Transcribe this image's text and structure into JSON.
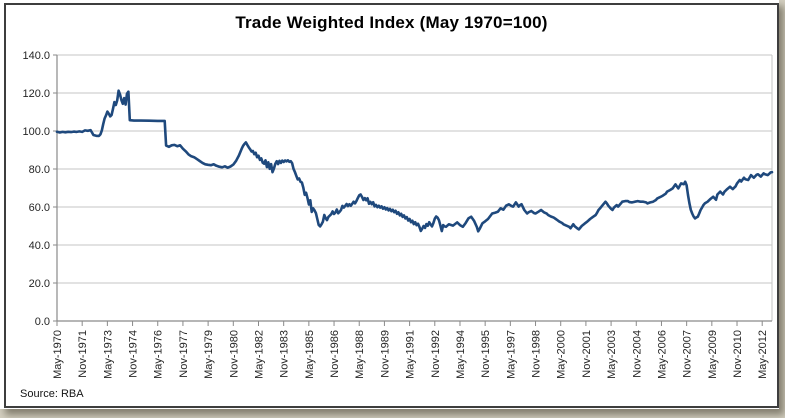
{
  "source_note": "Source: RBA",
  "colors": {
    "page_background": "#D3CFC0",
    "chart_background": "#FFFFFF",
    "frame_border": "#3E3E3E",
    "grid": "#C6C6C6",
    "axis": "#8A8A8A",
    "tick_label_text": "#262626",
    "title_text": "#000000",
    "line": "#1F497D"
  },
  "chart_data": {
    "type": "line",
    "title": "Trade Weighted Index (May 1970=100)",
    "series_name": "Trade Weighted Index",
    "xlabel": "",
    "ylabel": "",
    "x_unit": "months since May 1970",
    "xlim_months": [
      0,
      511
    ],
    "ylim": [
      0,
      140
    ],
    "grid": "horizontal",
    "legend": "none",
    "line_color": "#1F497D",
    "y_tick_values": [
      0,
      20,
      40,
      60,
      80,
      100,
      120,
      140
    ],
    "y_tick_labels": [
      "0.0",
      "20.0",
      "40.0",
      "60.0",
      "80.0",
      "100.0",
      "120.0",
      "140.0"
    ],
    "x_tick_month_indices": [
      0,
      18,
      36,
      54,
      72,
      90,
      108,
      126,
      144,
      162,
      180,
      198,
      216,
      234,
      252,
      270,
      288,
      306,
      324,
      342,
      360,
      378,
      396,
      414,
      432,
      450,
      468,
      486,
      504
    ],
    "x_tick_labels": [
      "May-1970",
      "Nov-1971",
      "May-1973",
      "Nov-1974",
      "May-1976",
      "Nov-1977",
      "May-1979",
      "Nov-1980",
      "May-1982",
      "Nov-1983",
      "May-1985",
      "Nov-1986",
      "May-1988",
      "Nov-1989",
      "May-1991",
      "Nov-1992",
      "May-1994",
      "Nov-1995",
      "May-1997",
      "Nov-1998",
      "May-2000",
      "Nov-2001",
      "May-2003",
      "Nov-2004",
      "May-2006",
      "Nov-2007",
      "May-2009",
      "Nov-2010",
      "May-2012"
    ],
    "points": [
      [
        0,
        99.6
      ],
      [
        2,
        99.2
      ],
      [
        4,
        99.5
      ],
      [
        6,
        99.3
      ],
      [
        8,
        99.6
      ],
      [
        10,
        99.4
      ],
      [
        12,
        99.7
      ],
      [
        14,
        99.5
      ],
      [
        16,
        99.8
      ],
      [
        18,
        99.5
      ],
      [
        20,
        100.3
      ],
      [
        22,
        100.1
      ],
      [
        24,
        100.4
      ],
      [
        25,
        99.2
      ],
      [
        26,
        97.9
      ],
      [
        28,
        97.5
      ],
      [
        30,
        97.4
      ],
      [
        31,
        98.2
      ],
      [
        32,
        100.2
      ],
      [
        33,
        103.6
      ],
      [
        34,
        106.6
      ],
      [
        35,
        108.2
      ],
      [
        36,
        110.2
      ],
      [
        37,
        109.1
      ],
      [
        38,
        107.7
      ],
      [
        39,
        108.4
      ],
      [
        40,
        111.7
      ],
      [
        41,
        115.2
      ],
      [
        42,
        113.7
      ],
      [
        43,
        116.1
      ],
      [
        44,
        121.2
      ],
      [
        45,
        119.3
      ],
      [
        46,
        116.3
      ],
      [
        47,
        114.3
      ],
      [
        48,
        117.3
      ],
      [
        49,
        113.9
      ],
      [
        50,
        119.7
      ],
      [
        51,
        120.7
      ],
      [
        52,
        105.7
      ],
      [
        55,
        105.5
      ],
      [
        60,
        105.5
      ],
      [
        66,
        105.4
      ],
      [
        72,
        105.3
      ],
      [
        77,
        105.3
      ],
      [
        78,
        92.3
      ],
      [
        80,
        91.7
      ],
      [
        82,
        92.5
      ],
      [
        84,
        92.7
      ],
      [
        86,
        92.0
      ],
      [
        88,
        92.5
      ],
      [
        90,
        90.7
      ],
      [
        92,
        89.3
      ],
      [
        94,
        87.7
      ],
      [
        96,
        86.7
      ],
      [
        98,
        86.2
      ],
      [
        100,
        85.2
      ],
      [
        102,
        84.2
      ],
      [
        104,
        83.2
      ],
      [
        106,
        82.5
      ],
      [
        108,
        82.2
      ],
      [
        110,
        82.0
      ],
      [
        112,
        82.5
      ],
      [
        114,
        81.7
      ],
      [
        116,
        81.2
      ],
      [
        118,
        80.9
      ],
      [
        120,
        81.4
      ],
      [
        122,
        80.7
      ],
      [
        124,
        81.3
      ],
      [
        126,
        82.3
      ],
      [
        128,
        84.3
      ],
      [
        130,
        87.1
      ],
      [
        132,
        90.7
      ],
      [
        133,
        92.2
      ],
      [
        134,
        93.2
      ],
      [
        135,
        94.0
      ],
      [
        136,
        92.7
      ],
      [
        137,
        91.5
      ],
      [
        138,
        90.4
      ],
      [
        139,
        89.2
      ],
      [
        140,
        89.5
      ],
      [
        141,
        87.8
      ],
      [
        142,
        88.5
      ],
      [
        143,
        86.2
      ],
      [
        144,
        87.0
      ],
      [
        145,
        84.8
      ],
      [
        146,
        85.6
      ],
      [
        147,
        83.3
      ],
      [
        148,
        82.8
      ],
      [
        149,
        84.6
      ],
      [
        150,
        81.0
      ],
      [
        151,
        83.5
      ],
      [
        152,
        80.1
      ],
      [
        153,
        82.6
      ],
      [
        154,
        78.3
      ],
      [
        155,
        80.2
      ],
      [
        156,
        82.7
      ],
      [
        157,
        84.1
      ],
      [
        158,
        82.6
      ],
      [
        159,
        84.3
      ],
      [
        160,
        83.2
      ],
      [
        161,
        84.4
      ],
      [
        162,
        83.7
      ],
      [
        163,
        84.5
      ],
      [
        164,
        84.0
      ],
      [
        165,
        84.6
      ],
      [
        166,
        83.8
      ],
      [
        167,
        84.1
      ],
      [
        168,
        83.1
      ],
      [
        169,
        80.1
      ],
      [
        170,
        78.4
      ],
      [
        171,
        76.4
      ],
      [
        172,
        74.5
      ],
      [
        173,
        75.0
      ],
      [
        174,
        73.3
      ],
      [
        175,
        72.9
      ],
      [
        176,
        70.2
      ],
      [
        177,
        66.4
      ],
      [
        178,
        67.5
      ],
      [
        179,
        64.7
      ],
      [
        180,
        61.3
      ],
      [
        181,
        63.6
      ],
      [
        182,
        57.4
      ],
      [
        183,
        59.3
      ],
      [
        184,
        58.2
      ],
      [
        185,
        56.8
      ],
      [
        186,
        53.7
      ],
      [
        187,
        50.6
      ],
      [
        188,
        49.8
      ],
      [
        189,
        50.9
      ],
      [
        190,
        52.3
      ],
      [
        191,
        55.8
      ],
      [
        192,
        54.2
      ],
      [
        193,
        53.1
      ],
      [
        194,
        54.8
      ],
      [
        195,
        55.5
      ],
      [
        196,
        56.2
      ],
      [
        197,
        57.7
      ],
      [
        198,
        56.3
      ],
      [
        199,
        57.1
      ],
      [
        200,
        58.7
      ],
      [
        201,
        56.7
      ],
      [
        202,
        57.5
      ],
      [
        203,
        58.4
      ],
      [
        204,
        60.6
      ],
      [
        205,
        59.7
      ],
      [
        206,
        60.6
      ],
      [
        207,
        61.6
      ],
      [
        208,
        60.5
      ],
      [
        209,
        61.4
      ],
      [
        210,
        60.7
      ],
      [
        211,
        61.7
      ],
      [
        212,
        62.8
      ],
      [
        213,
        61.9
      ],
      [
        214,
        63.1
      ],
      [
        215,
        64.7
      ],
      [
        216,
        66.1
      ],
      [
        217,
        66.6
      ],
      [
        218,
        65.3
      ],
      [
        219,
        63.7
      ],
      [
        220,
        64.7
      ],
      [
        221,
        63.5
      ],
      [
        222,
        64.6
      ],
      [
        223,
        61.7
      ],
      [
        224,
        62.7
      ],
      [
        225,
        61.5
      ],
      [
        226,
        62.5
      ],
      [
        227,
        60.3
      ],
      [
        228,
        61.1
      ],
      [
        229,
        59.9
      ],
      [
        230,
        60.7
      ],
      [
        231,
        59.7
      ],
      [
        232,
        60.3
      ],
      [
        233,
        59.1
      ],
      [
        234,
        59.9
      ],
      [
        235,
        58.7
      ],
      [
        236,
        59.4
      ],
      [
        237,
        58.2
      ],
      [
        238,
        59.0
      ],
      [
        239,
        57.8
      ],
      [
        240,
        58.5
      ],
      [
        241,
        57.2
      ],
      [
        242,
        58.0
      ],
      [
        243,
        56.4
      ],
      [
        244,
        57.2
      ],
      [
        245,
        55.6
      ],
      [
        246,
        56.4
      ],
      [
        247,
        54.8
      ],
      [
        248,
        55.6
      ],
      [
        249,
        54.0
      ],
      [
        250,
        54.7
      ],
      [
        251,
        52.9
      ],
      [
        252,
        53.7
      ],
      [
        253,
        52.0
      ],
      [
        254,
        52.8
      ],
      [
        255,
        51.0
      ],
      [
        256,
        52.0
      ],
      [
        257,
        50.4
      ],
      [
        258,
        51.2
      ],
      [
        259,
        49.6
      ],
      [
        260,
        47.4
      ],
      [
        261,
        48.6
      ],
      [
        262,
        50.0
      ],
      [
        263,
        49.0
      ],
      [
        264,
        51.0
      ],
      [
        265,
        50.1
      ],
      [
        266,
        52.0
      ],
      [
        267,
        50.8
      ],
      [
        268,
        49.8
      ],
      [
        269,
        51.6
      ],
      [
        270,
        53.9
      ],
      [
        271,
        55.0
      ],
      [
        272,
        54.4
      ],
      [
        273,
        53.0
      ],
      [
        274,
        50.2
      ],
      [
        275,
        47.3
      ],
      [
        276,
        50.5
      ],
      [
        277,
        49.8
      ],
      [
        278,
        49.6
      ],
      [
        280,
        50.9
      ],
      [
        283,
        50.2
      ],
      [
        286,
        51.9
      ],
      [
        288,
        50.5
      ],
      [
        290,
        49.6
      ],
      [
        292,
        51.5
      ],
      [
        294,
        54.0
      ],
      [
        296,
        54.9
      ],
      [
        298,
        52.8
      ],
      [
        300,
        49.5
      ],
      [
        301,
        47.2
      ],
      [
        302,
        48.4
      ],
      [
        304,
        51.4
      ],
      [
        306,
        52.5
      ],
      [
        308,
        53.7
      ],
      [
        311,
        56.6
      ],
      [
        313,
        57.0
      ],
      [
        315,
        57.5
      ],
      [
        317,
        59.3
      ],
      [
        319,
        58.6
      ],
      [
        321,
        60.7
      ],
      [
        323,
        61.4
      ],
      [
        325,
        60.5
      ],
      [
        326,
        60.2
      ],
      [
        328,
        62.4
      ],
      [
        330,
        60.2
      ],
      [
        331,
        61.0
      ],
      [
        332,
        61.5
      ],
      [
        334,
        58.4
      ],
      [
        336,
        56.6
      ],
      [
        337,
        57.2
      ],
      [
        339,
        57.9
      ],
      [
        341,
        56.8
      ],
      [
        342,
        56.6
      ],
      [
        344,
        57.5
      ],
      [
        346,
        58.4
      ],
      [
        348,
        57.2
      ],
      [
        350,
        56.5
      ],
      [
        351,
        55.8
      ],
      [
        353,
        55.0
      ],
      [
        355,
        54.4
      ],
      [
        357,
        53.4
      ],
      [
        359,
        52.3
      ],
      [
        361,
        51.6
      ],
      [
        362,
        50.9
      ],
      [
        364,
        50.2
      ],
      [
        366,
        49.6
      ],
      [
        367,
        48.8
      ],
      [
        369,
        50.9
      ],
      [
        370,
        49.9
      ],
      [
        372,
        48.7
      ],
      [
        373,
        48.2
      ],
      [
        375,
        50.0
      ],
      [
        377,
        51.2
      ],
      [
        379,
        52.3
      ],
      [
        381,
        53.7
      ],
      [
        383,
        54.8
      ],
      [
        385,
        55.8
      ],
      [
        386,
        57.0
      ],
      [
        387,
        58.4
      ],
      [
        388,
        59.2
      ],
      [
        390,
        61.0
      ],
      [
        392,
        62.8
      ],
      [
        393,
        61.9
      ],
      [
        394,
        60.7
      ],
      [
        396,
        59.0
      ],
      [
        397,
        58.4
      ],
      [
        398,
        59.7
      ],
      [
        400,
        61.0
      ],
      [
        401,
        60.2
      ],
      [
        403,
        61.9
      ],
      [
        404,
        62.8
      ],
      [
        406,
        63.1
      ],
      [
        408,
        63.1
      ],
      [
        409,
        62.6
      ],
      [
        411,
        62.4
      ],
      [
        413,
        62.8
      ],
      [
        415,
        63.1
      ],
      [
        417,
        62.8
      ],
      [
        419,
        62.8
      ],
      [
        421,
        62.4
      ],
      [
        422,
        61.9
      ],
      [
        424,
        62.4
      ],
      [
        426,
        62.8
      ],
      [
        428,
        63.7
      ],
      [
        429,
        64.5
      ],
      [
        431,
        65.2
      ],
      [
        433,
        66.0
      ],
      [
        435,
        67.0
      ],
      [
        436,
        68.1
      ],
      [
        438,
        68.9
      ],
      [
        440,
        69.8
      ],
      [
        441,
        70.9
      ],
      [
        442,
        71.9
      ],
      [
        443,
        70.8
      ],
      [
        444,
        69.8
      ],
      [
        445,
        71.1
      ],
      [
        446,
        72.4
      ],
      [
        448,
        72.0
      ],
      [
        449,
        73.3
      ],
      [
        450,
        71.5
      ],
      [
        451,
        66.3
      ],
      [
        452,
        62.0
      ],
      [
        453,
        58.5
      ],
      [
        454,
        56.6
      ],
      [
        455,
        55.0
      ],
      [
        456,
        54.0
      ],
      [
        457,
        54.5
      ],
      [
        458,
        54.9
      ],
      [
        459,
        56.6
      ],
      [
        460,
        58.4
      ],
      [
        461,
        59.7
      ],
      [
        462,
        61.0
      ],
      [
        463,
        61.9
      ],
      [
        465,
        62.8
      ],
      [
        466,
        63.5
      ],
      [
        467,
        64.2
      ],
      [
        469,
        65.4
      ],
      [
        470,
        64.6
      ],
      [
        471,
        63.8
      ],
      [
        472,
        66.6
      ],
      [
        474,
        68.1
      ],
      [
        475,
        67.3
      ],
      [
        476,
        66.6
      ],
      [
        477,
        68.0
      ],
      [
        479,
        69.4
      ],
      [
        481,
        70.7
      ],
      [
        482,
        70.0
      ],
      [
        483,
        69.4
      ],
      [
        485,
        70.9
      ],
      [
        486,
        72.4
      ],
      [
        488,
        74.2
      ],
      [
        489,
        73.4
      ],
      [
        491,
        75.4
      ],
      [
        492,
        74.6
      ],
      [
        494,
        74.2
      ],
      [
        496,
        76.8
      ],
      [
        497,
        76.1
      ],
      [
        498,
        75.4
      ],
      [
        500,
        77.0
      ],
      [
        501,
        77.2
      ],
      [
        503,
        76.0
      ],
      [
        505,
        77.7
      ],
      [
        506,
        77.2
      ],
      [
        508,
        76.8
      ],
      [
        509,
        77.5
      ],
      [
        510,
        78.2
      ],
      [
        511,
        78.3
      ]
    ]
  }
}
